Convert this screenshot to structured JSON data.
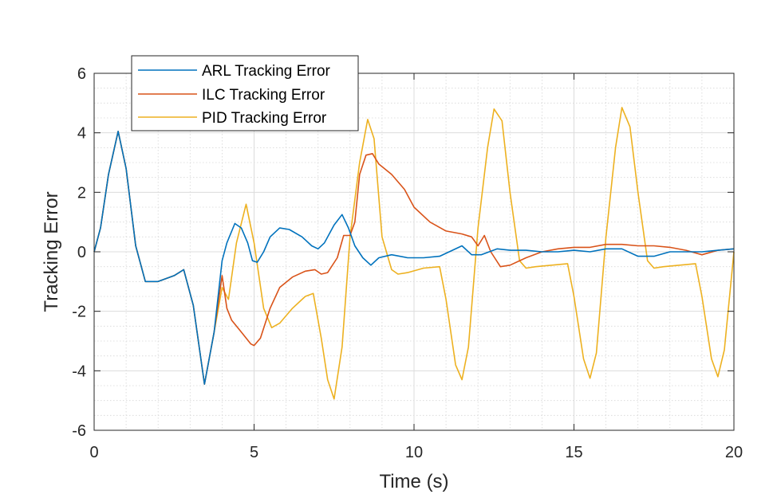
{
  "chart_data": {
    "type": "line",
    "title": "",
    "xlabel": "Time (s)",
    "ylabel": "Tracking Error",
    "xlim": [
      0,
      20
    ],
    "ylim": [
      -6,
      6
    ],
    "xticks": [
      "0",
      "5",
      "10",
      "15",
      "20"
    ],
    "yticks": [
      "-6",
      "-4",
      "-2",
      "0",
      "2",
      "4",
      "6"
    ],
    "grid": true,
    "minor_grid": true,
    "legend_position": "top-left",
    "series": [
      {
        "name": "ARL Tracking Error",
        "color": "#0072BD",
        "x": [
          0,
          0.2,
          0.45,
          0.75,
          1.0,
          1.3,
          1.6,
          2.0,
          2.5,
          2.8,
          3.1,
          3.45,
          3.75,
          4.0,
          4.15,
          4.4,
          4.6,
          4.8,
          4.95,
          5.1,
          5.3,
          5.5,
          5.8,
          6.1,
          6.5,
          6.8,
          7.0,
          7.2,
          7.5,
          7.75,
          7.95,
          8.15,
          8.4,
          8.65,
          8.9,
          9.3,
          9.8,
          10.3,
          10.8,
          11.2,
          11.5,
          11.8,
          12.1,
          12.6,
          13.0,
          13.5,
          14.0,
          14.5,
          15.0,
          15.5,
          16.0,
          16.5,
          17.0,
          17.5,
          18.0,
          18.5,
          19.0,
          19.5,
          20.0
        ],
        "y": [
          0,
          0.8,
          2.6,
          4.05,
          2.8,
          0.2,
          -1.0,
          -1.0,
          -0.8,
          -0.6,
          -1.8,
          -4.45,
          -2.7,
          -0.3,
          0.3,
          0.95,
          0.8,
          0.3,
          -0.3,
          -0.35,
          0.0,
          0.5,
          0.8,
          0.75,
          0.5,
          0.2,
          0.1,
          0.3,
          0.9,
          1.25,
          0.8,
          0.2,
          -0.2,
          -0.45,
          -0.2,
          -0.1,
          -0.2,
          -0.2,
          -0.15,
          0.05,
          0.2,
          -0.1,
          -0.1,
          0.1,
          0.05,
          0.05,
          0.0,
          0.0,
          0.05,
          0.0,
          0.1,
          0.1,
          -0.15,
          -0.15,
          0.0,
          0.0,
          0.0,
          0.05,
          0.1
        ]
      },
      {
        "name": "ILC Tracking Error",
        "color": "#D95319",
        "x": [
          0,
          0.2,
          0.45,
          0.75,
          1.0,
          1.3,
          1.6,
          2.0,
          2.5,
          2.8,
          3.1,
          3.45,
          3.75,
          4.0,
          4.15,
          4.3,
          4.6,
          4.9,
          5.0,
          5.2,
          5.5,
          5.8,
          6.2,
          6.6,
          6.9,
          7.1,
          7.3,
          7.6,
          7.8,
          8.0,
          8.15,
          8.3,
          8.5,
          8.7,
          8.9,
          9.3,
          9.7,
          10.0,
          10.5,
          11.0,
          11.5,
          11.8,
          12.0,
          12.2,
          12.4,
          12.7,
          13.0,
          13.5,
          14.0,
          14.5,
          15.0,
          15.5,
          16.0,
          16.5,
          17.0,
          17.5,
          18.0,
          18.5,
          19.0,
          19.5,
          20.0
        ],
        "y": [
          0,
          0.8,
          2.6,
          4.05,
          2.8,
          0.2,
          -1.0,
          -1.0,
          -0.8,
          -0.6,
          -1.8,
          -4.45,
          -2.7,
          -0.8,
          -1.9,
          -2.3,
          -2.7,
          -3.1,
          -3.15,
          -2.9,
          -1.9,
          -1.2,
          -0.85,
          -0.65,
          -0.6,
          -0.75,
          -0.7,
          -0.2,
          0.55,
          0.55,
          1.0,
          2.6,
          3.25,
          3.3,
          2.95,
          2.6,
          2.1,
          1.5,
          1.0,
          0.7,
          0.6,
          0.5,
          0.2,
          0.55,
          0.0,
          -0.5,
          -0.45,
          -0.2,
          0.0,
          0.1,
          0.15,
          0.15,
          0.25,
          0.25,
          0.2,
          0.2,
          0.15,
          0.05,
          -0.1,
          0.05,
          0.1
        ]
      },
      {
        "name": "PID Tracking Error",
        "color": "#EDB120",
        "x": [
          0,
          0.2,
          0.45,
          0.75,
          1.0,
          1.3,
          1.6,
          2.0,
          2.5,
          2.8,
          3.1,
          3.45,
          3.75,
          4.0,
          4.2,
          4.45,
          4.75,
          5.0,
          5.3,
          5.55,
          5.8,
          6.2,
          6.6,
          6.85,
          7.1,
          7.3,
          7.5,
          7.75,
          8.0,
          8.3,
          8.55,
          8.75,
          9.0,
          9.3,
          9.5,
          9.8,
          10.3,
          10.8,
          11.0,
          11.3,
          11.5,
          11.7,
          12.0,
          12.3,
          12.5,
          12.75,
          13.0,
          13.3,
          13.5,
          13.8,
          14.3,
          14.8,
          15.0,
          15.3,
          15.5,
          15.7,
          16.0,
          16.3,
          16.5,
          16.75,
          17.0,
          17.3,
          17.5,
          17.8,
          18.3,
          18.8,
          19.0,
          19.3,
          19.5,
          19.7,
          20.0
        ],
        "y": [
          0,
          0.8,
          2.6,
          4.05,
          2.8,
          0.2,
          -1.0,
          -1.0,
          -0.8,
          -0.6,
          -1.8,
          -4.45,
          -2.7,
          -1.2,
          -1.6,
          0.3,
          1.6,
          0.3,
          -1.9,
          -2.55,
          -2.4,
          -1.9,
          -1.5,
          -1.4,
          -2.9,
          -4.3,
          -4.95,
          -3.2,
          0.5,
          3.0,
          4.45,
          3.8,
          0.5,
          -0.6,
          -0.75,
          -0.7,
          -0.55,
          -0.5,
          -1.6,
          -3.8,
          -4.3,
          -3.2,
          0.8,
          3.5,
          4.8,
          4.4,
          2.0,
          -0.3,
          -0.55,
          -0.5,
          -0.45,
          -0.4,
          -1.5,
          -3.6,
          -4.25,
          -3.4,
          0.5,
          3.5,
          4.85,
          4.2,
          2.0,
          -0.3,
          -0.55,
          -0.5,
          -0.45,
          -0.4,
          -1.5,
          -3.6,
          -4.2,
          -3.3,
          0.0
        ]
      }
    ]
  }
}
